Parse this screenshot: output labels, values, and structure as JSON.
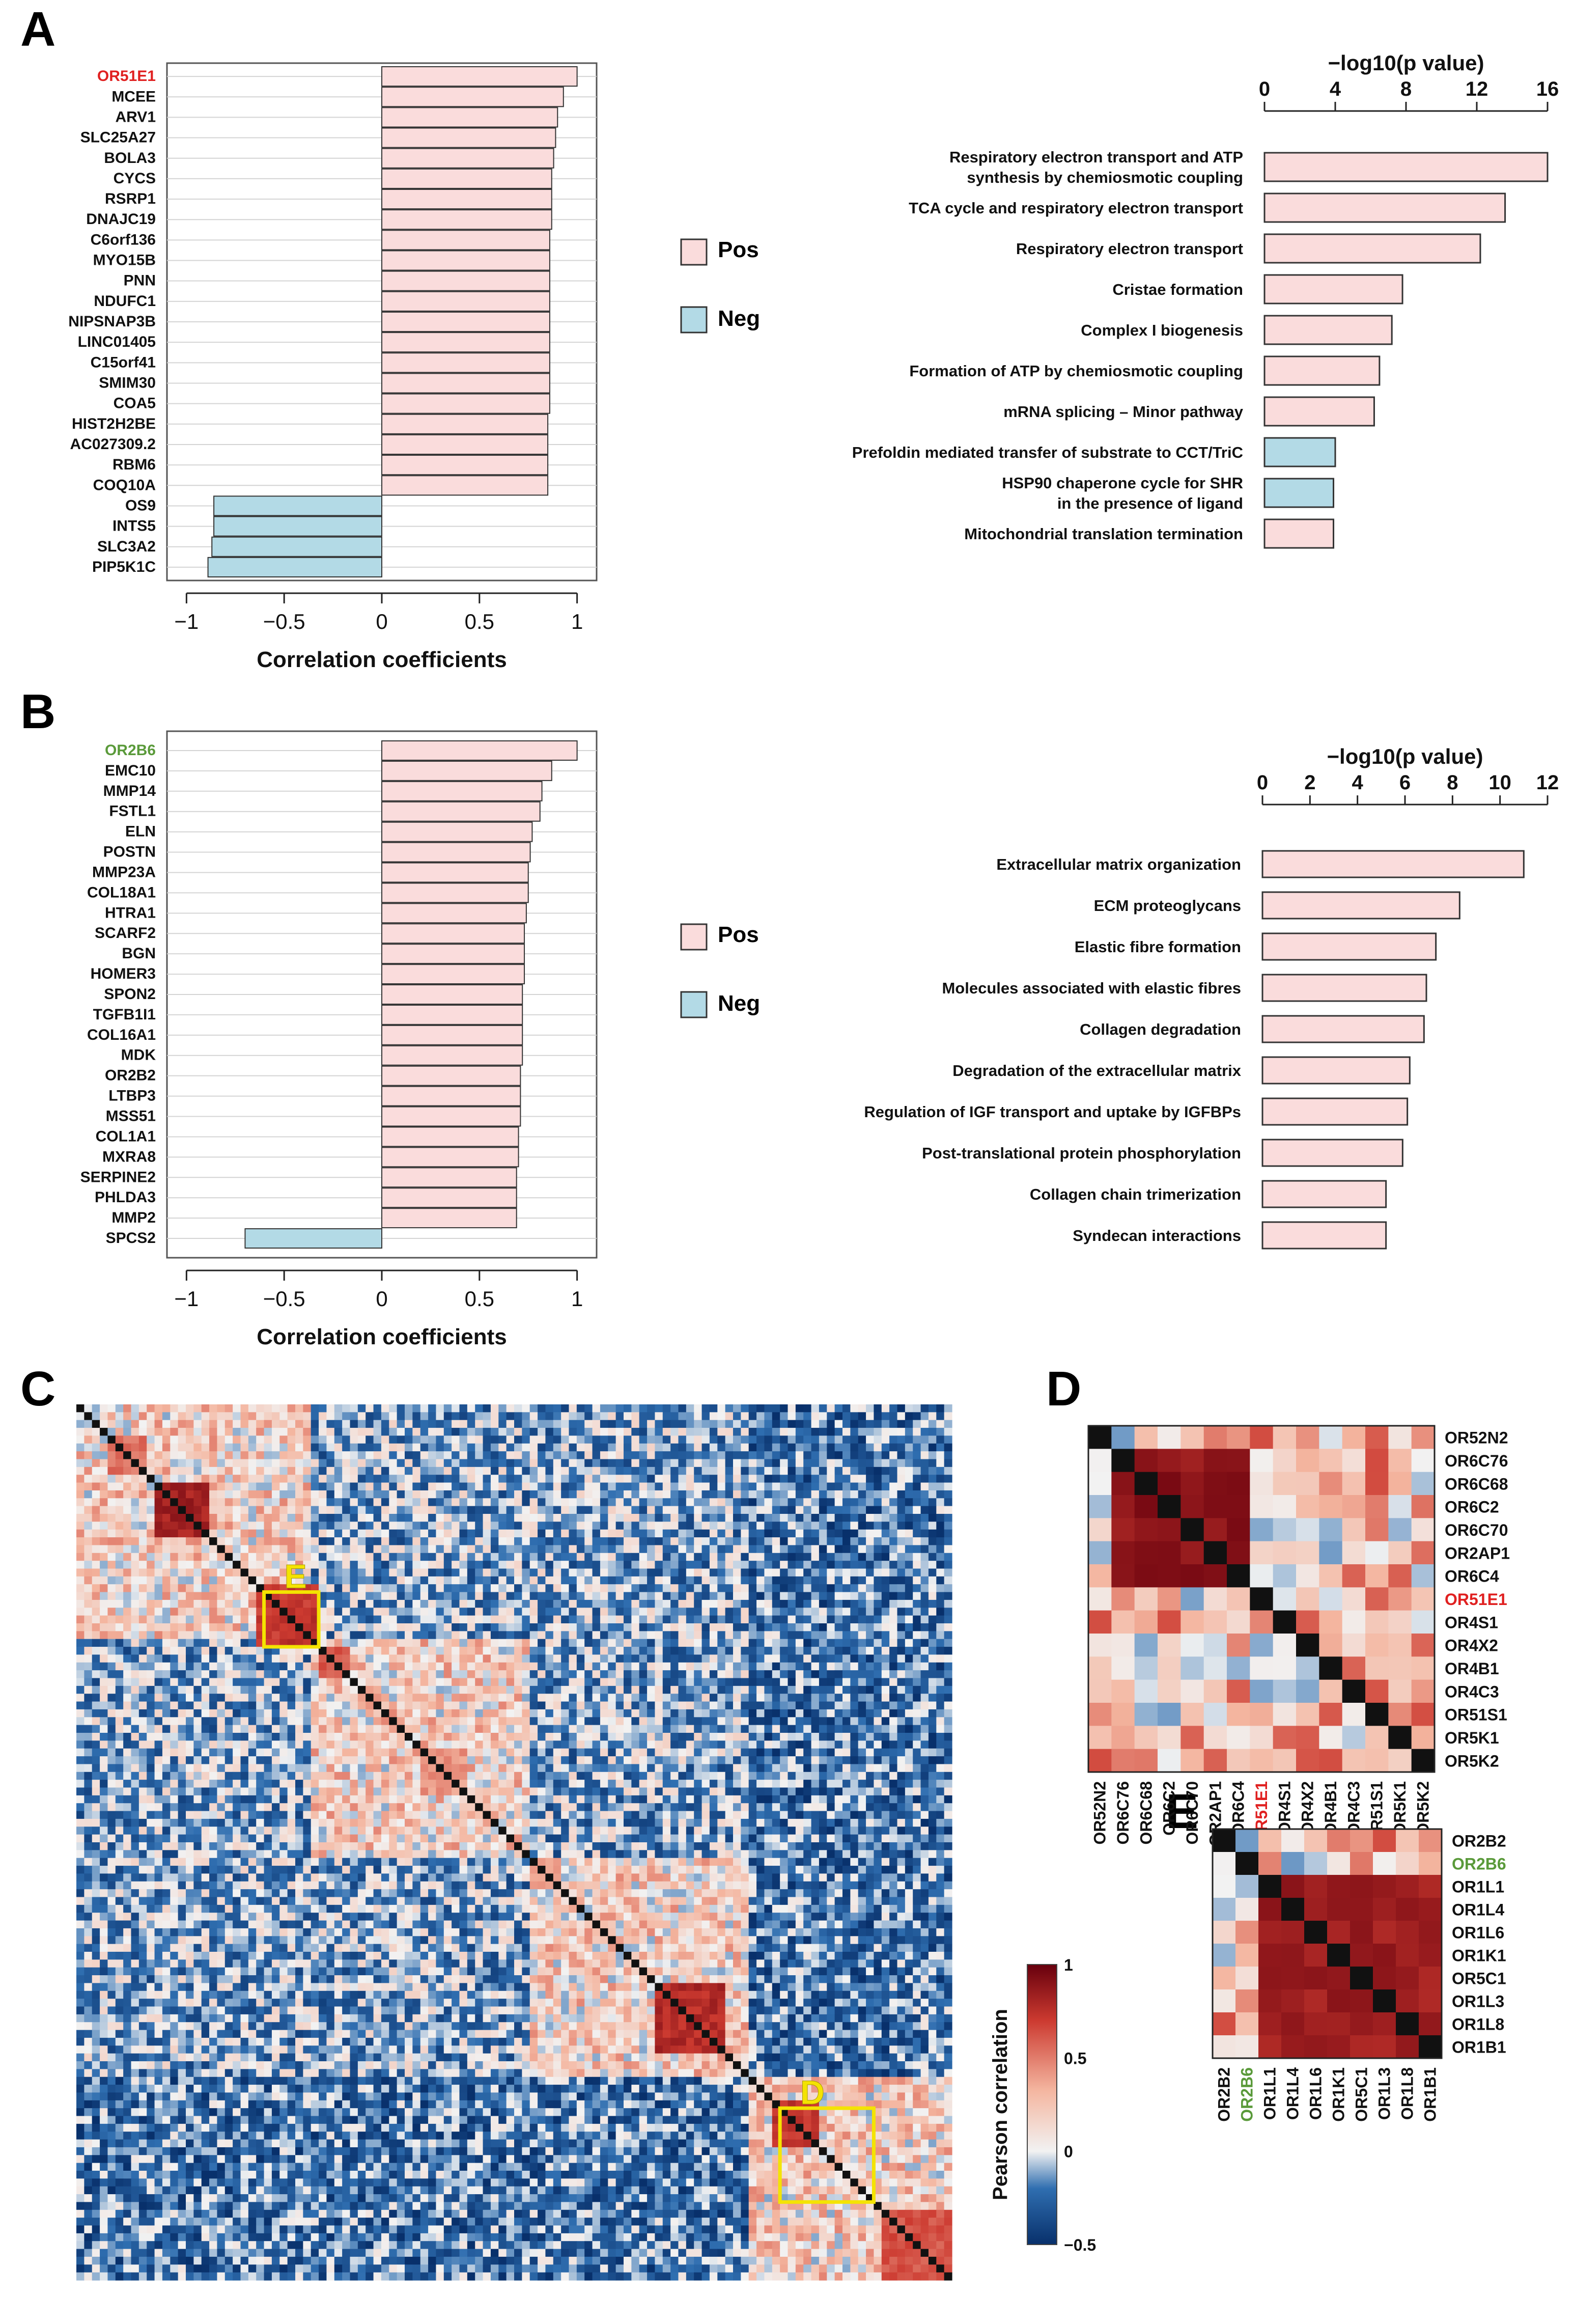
{
  "panels": {
    "A": "A",
    "B": "B",
    "C": "C",
    "D": "D",
    "E": "E"
  },
  "colors": {
    "pos_fill": "#fadcdc",
    "neg_fill": "#b3dae6",
    "bar_stroke": "#333333",
    "red_gene": "#e02020",
    "green_gene": "#5a9a3a",
    "box": "#f4e300"
  },
  "legend": {
    "pos": "Pos",
    "neg": "Neg"
  },
  "chart_data": [
    {
      "id": "A_corr",
      "type": "bar",
      "orientation": "horizontal",
      "xlabel": "Correlation coefficients",
      "xlim": [
        -1.1,
        1.1
      ],
      "xticks": [
        -1,
        -0.5,
        0,
        0.5,
        1
      ],
      "xtick_labels": [
        "−1",
        "−0.5",
        "0",
        "0.5",
        "1"
      ],
      "highlight": "OR51E1",
      "categories": [
        "OR51E1",
        "MCEE",
        "ARV1",
        "SLC25A27",
        "BOLA3",
        "CYCS",
        "RSRP1",
        "DNAJC19",
        "C6orf136",
        "MYO15B",
        "PNN",
        "NDUFC1",
        "NIPSNAP3B",
        "LINC01405",
        "C15orf41",
        "SMIM30",
        "COA5",
        "HIST2H2BE",
        "AC027309.2",
        "RBM6",
        "COQ10A",
        "OS9",
        "INTS5",
        "SLC3A2",
        "PIP5K1C"
      ],
      "values": [
        1.0,
        0.93,
        0.9,
        0.89,
        0.88,
        0.87,
        0.87,
        0.87,
        0.86,
        0.86,
        0.86,
        0.86,
        0.86,
        0.86,
        0.86,
        0.86,
        0.86,
        0.85,
        0.85,
        0.85,
        0.85,
        -0.86,
        -0.86,
        -0.87,
        -0.89
      ]
    },
    {
      "id": "A_path",
      "type": "bar",
      "orientation": "horizontal",
      "title": "−log10(p value)",
      "xlim": [
        0,
        16
      ],
      "xticks": [
        0,
        4,
        8,
        12,
        16
      ],
      "categories": [
        [
          "Respiratory electron transport and ATP",
          "synthesis by chemiosmotic coupling"
        ],
        [
          "TCA cycle and respiratory electron transport"
        ],
        [
          "Respiratory electron transport"
        ],
        [
          "Cristae formation"
        ],
        [
          "Complex I biogenesis"
        ],
        [
          "Formation of ATP by chemiosmotic coupling"
        ],
        [
          "mRNA splicing – Minor pathway"
        ],
        [
          "Prefoldin mediated transfer of substrate to CCT/TriC"
        ],
        [
          "HSP90 chaperone cycle for SHR",
          "in the presence of ligand"
        ],
        [
          "Mitochondrial translation termination"
        ]
      ],
      "values": [
        16.0,
        13.6,
        12.2,
        7.8,
        7.2,
        6.5,
        6.2,
        4.0,
        3.9,
        3.9
      ],
      "direction": [
        "pos",
        "pos",
        "pos",
        "pos",
        "pos",
        "pos",
        "pos",
        "neg",
        "neg",
        "pos"
      ]
    },
    {
      "id": "B_corr",
      "type": "bar",
      "orientation": "horizontal",
      "xlabel": "Correlation coefficients",
      "xlim": [
        -1.1,
        1.1
      ],
      "xticks": [
        -1,
        -0.5,
        0,
        0.5,
        1
      ],
      "xtick_labels": [
        "−1",
        "−0.5",
        "0",
        "0.5",
        "1"
      ],
      "highlight": "OR2B6",
      "categories": [
        "OR2B6",
        "EMC10",
        "MMP14",
        "FSTL1",
        "ELN",
        "POSTN",
        "MMP23A",
        "COL18A1",
        "HTRA1",
        "SCARF2",
        "BGN",
        "HOMER3",
        "SPON2",
        "TGFB1I1",
        "COL16A1",
        "MDK",
        "OR2B2",
        "LTBP3",
        "MSS51",
        "COL1A1",
        "MXRA8",
        "SERPINE2",
        "PHLDA3",
        "MMP2",
        "SPCS2"
      ],
      "values": [
        1.0,
        0.87,
        0.82,
        0.81,
        0.77,
        0.76,
        0.75,
        0.75,
        0.74,
        0.73,
        0.73,
        0.73,
        0.72,
        0.72,
        0.72,
        0.72,
        0.71,
        0.71,
        0.71,
        0.7,
        0.7,
        0.69,
        0.69,
        0.69,
        -0.7
      ]
    },
    {
      "id": "B_path",
      "type": "bar",
      "orientation": "horizontal",
      "title": "−log10(p value)",
      "xlim": [
        0,
        12
      ],
      "xticks": [
        0,
        2,
        4,
        6,
        8,
        10,
        12
      ],
      "categories": [
        [
          "Extracellular matrix organization"
        ],
        [
          "ECM proteoglycans"
        ],
        [
          "Elastic fibre formation"
        ],
        [
          "Molecules associated with elastic fibres"
        ],
        [
          "Collagen degradation"
        ],
        [
          "Degradation of the extracellular matrix"
        ],
        [
          "Regulation of IGF transport and uptake by IGFBPs"
        ],
        [
          "Post-translational protein phosphorylation"
        ],
        [
          "Collagen chain trimerization"
        ],
        [
          "Syndecan interactions"
        ]
      ],
      "values": [
        11.0,
        8.3,
        7.3,
        6.9,
        6.8,
        6.2,
        6.1,
        5.9,
        5.2,
        5.2
      ],
      "direction": [
        "pos",
        "pos",
        "pos",
        "pos",
        "pos",
        "pos",
        "pos",
        "pos",
        "pos",
        "pos"
      ]
    },
    {
      "id": "C_heatmap",
      "type": "heatmap",
      "n": 112,
      "blocks": [
        {
          "start": 4,
          "end": 8,
          "level": 0.6
        },
        {
          "start": 10,
          "end": 16,
          "level": 0.9
        },
        {
          "start": 23,
          "end": 30,
          "level": 0.8
        },
        {
          "start": 31,
          "end": 34,
          "level": 0.7
        },
        {
          "start": 36,
          "end": 38,
          "level": 0.5
        },
        {
          "start": 44,
          "end": 49,
          "level": 0.5
        },
        {
          "start": 58,
          "end": 61,
          "level": 0.5
        },
        {
          "start": 74,
          "end": 82,
          "level": 0.85
        },
        {
          "start": 89,
          "end": 94,
          "level": 0.8
        },
        {
          "start": 103,
          "end": 111,
          "level": 0.7
        }
      ],
      "boxes": [
        {
          "label": "E",
          "start": 24,
          "end": 30
        },
        {
          "label": "D",
          "start": 90,
          "end": 101
        }
      ],
      "colorbar": {
        "title": "Pearson correlation",
        "ticks": [
          1,
          0.5,
          0,
          -0.5
        ],
        "tick_labels": [
          "1",
          "0.5",
          "0",
          "−0.5"
        ],
        "range": [
          -0.5,
          1
        ]
      }
    },
    {
      "id": "D_heatmap",
      "type": "heatmap",
      "labels": [
        "OR52N2",
        "OR6C76",
        "OR6C68",
        "OR6C2",
        "OR6C70",
        "OR2AP1",
        "OR6C4",
        "OR51E1",
        "OR4S1",
        "OR4X2",
        "OR4B1",
        "OR4C3",
        "OR51S1",
        "OR5K1",
        "OR5K2"
      ],
      "highlight": "OR51E1",
      "block": [
        1,
        6
      ],
      "block_level": 0.95
    },
    {
      "id": "E_heatmap",
      "type": "heatmap",
      "labels": [
        "OR2B2",
        "OR2B6",
        "OR1L1",
        "OR1L4",
        "OR1L6",
        "OR1K1",
        "OR5C1",
        "OR1L3",
        "OR1L8",
        "OR1B1"
      ],
      "highlight": "OR2B6",
      "block": [
        2,
        9
      ],
      "block_level": 0.9
    }
  ]
}
